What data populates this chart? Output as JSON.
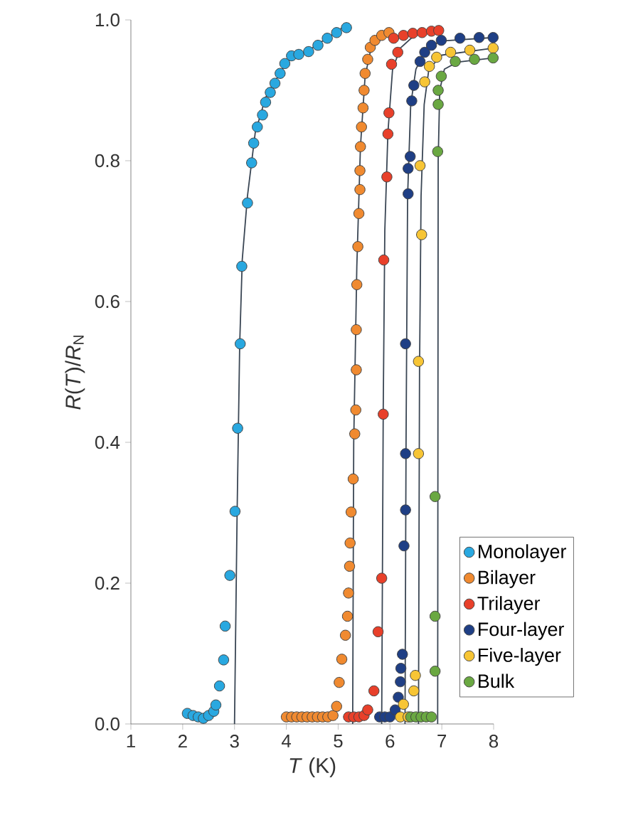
{
  "chart_data": {
    "type": "scatter",
    "xlabel": "*T* (K)",
    "ylabel": "*R*(*T*)/*R*$_{N}$",
    "xlim": [
      1,
      8
    ],
    "ylim": [
      0,
      1.0
    ],
    "xticks": [
      1,
      2,
      3,
      4,
      5,
      6,
      7,
      8
    ],
    "yticks": [
      {
        "value": 0,
        "label": "0.0"
      },
      {
        "value": 0.2,
        "label": "0.2"
      },
      {
        "value": 0.4,
        "label": "0.4"
      },
      {
        "value": 0.6,
        "label": "0.6"
      },
      {
        "value": 0.8,
        "label": "0.8"
      },
      {
        "value": 1.0,
        "label": "1.0"
      }
    ],
    "grid": false,
    "legend": "bottom right",
    "marker": "circle",
    "series": [
      {
        "name": "Monolayer",
        "color": "#29a8e0",
        "x": [
          2.09,
          2.2,
          2.3,
          2.4,
          2.5,
          2.6,
          2.64,
          2.71,
          2.79,
          2.82,
          2.91,
          3.01,
          3.06,
          3.11,
          3.14,
          3.25,
          3.33,
          3.37,
          3.44,
          3.54,
          3.6,
          3.69,
          3.78,
          3.88,
          3.97,
          4.1,
          4.24,
          4.43,
          4.61,
          4.79,
          4.97,
          5.16
        ],
        "values": [
          0.015,
          0.012,
          0.01,
          0.008,
          0.012,
          0.018,
          0.027,
          0.054,
          0.091,
          0.139,
          0.211,
          0.302,
          0.42,
          0.54,
          0.65,
          0.74,
          0.797,
          0.825,
          0.848,
          0.865,
          0.883,
          0.897,
          0.91,
          0.924,
          0.938,
          0.949,
          0.951,
          0.955,
          0.964,
          0.974,
          0.982,
          0.989
        ]
      },
      {
        "name": "Bilayer",
        "color": "#f08a30",
        "x": [
          4.0,
          4.1,
          4.2,
          4.3,
          4.4,
          4.5,
          4.6,
          4.7,
          4.8,
          4.9,
          4.97,
          5.02,
          5.07,
          5.14,
          5.18,
          5.2,
          5.22,
          5.23,
          5.25,
          5.29,
          5.32,
          5.34,
          5.35,
          5.35,
          5.36,
          5.38,
          5.4,
          5.42,
          5.42,
          5.43,
          5.45,
          5.48,
          5.5,
          5.52,
          5.57,
          5.62,
          5.71,
          5.84,
          5.98
        ],
        "values": [
          0.01,
          0.01,
          0.01,
          0.01,
          0.01,
          0.01,
          0.01,
          0.01,
          0.01,
          0.012,
          0.025,
          0.059,
          0.092,
          0.126,
          0.153,
          0.186,
          0.224,
          0.257,
          0.301,
          0.348,
          0.412,
          0.446,
          0.503,
          0.56,
          0.624,
          0.678,
          0.725,
          0.759,
          0.786,
          0.82,
          0.848,
          0.875,
          0.9,
          0.924,
          0.944,
          0.961,
          0.971,
          0.978,
          0.982
        ]
      },
      {
        "name": "Trilayer",
        "color": "#e8402a",
        "x": [
          5.2,
          5.3,
          5.4,
          5.5,
          5.57,
          5.69,
          5.77,
          5.84,
          5.87,
          5.88,
          5.94,
          5.96,
          5.98,
          6.03,
          6.15,
          6.07,
          6.26,
          6.44,
          6.62,
          6.8,
          6.94
        ],
        "values": [
          0.01,
          0.01,
          0.01,
          0.012,
          0.02,
          0.047,
          0.131,
          0.207,
          0.44,
          0.659,
          0.777,
          0.838,
          0.868,
          0.937,
          0.954,
          0.974,
          0.978,
          0.981,
          0.982,
          0.984,
          0.985
        ]
      },
      {
        "name": "Four-layer",
        "color": "#1f3f85",
        "x": [
          5.8,
          5.9,
          6.0,
          6.1,
          6.16,
          6.2,
          6.21,
          6.24,
          6.27,
          6.3,
          6.3,
          6.3,
          6.35,
          6.35,
          6.39,
          6.42,
          6.46,
          6.58,
          6.67,
          6.8,
          6.99,
          7.35,
          7.72,
          7.99
        ],
        "values": [
          0.01,
          0.01,
          0.01,
          0.02,
          0.038,
          0.06,
          0.079,
          0.099,
          0.253,
          0.304,
          0.384,
          0.54,
          0.753,
          0.789,
          0.806,
          0.885,
          0.907,
          0.941,
          0.954,
          0.964,
          0.971,
          0.974,
          0.975,
          0.975
        ]
      },
      {
        "name": "Five-layer",
        "color": "#f7c535",
        "x": [
          6.2,
          6.26,
          6.35,
          6.46,
          6.49,
          6.55,
          6.55,
          6.61,
          6.58,
          6.67,
          6.76,
          6.9,
          7.17,
          7.54,
          7.99
        ],
        "values": [
          0.01,
          0.028,
          0.01,
          0.047,
          0.069,
          0.384,
          0.515,
          0.695,
          0.793,
          0.912,
          0.934,
          0.947,
          0.954,
          0.957,
          0.96
        ]
      },
      {
        "name": "Bulk",
        "color": "#6aa842",
        "x": [
          6.4,
          6.5,
          6.6,
          6.7,
          6.8,
          6.87,
          6.87,
          6.87,
          6.92,
          6.93,
          6.93,
          6.99,
          7.26,
          7.63,
          7.99
        ],
        "values": [
          0.01,
          0.01,
          0.01,
          0.01,
          0.01,
          0.075,
          0.153,
          0.323,
          0.813,
          0.88,
          0.9,
          0.92,
          0.941,
          0.944,
          0.946
        ]
      },
      {
        "type": "line",
        "marker": "none",
        "color": "#3a4654",
        "x": [
          3.0,
          3.05,
          3.1,
          3.15,
          3.25,
          3.4,
          3.6,
          4.0,
          4.5,
          5.1
        ],
        "values": [
          0,
          0.3,
          0.54,
          0.66,
          0.75,
          0.84,
          0.89,
          0.94,
          0.96,
          0.99
        ]
      },
      {
        "type": "line",
        "marker": "none",
        "color": "#3a4654",
        "x": [
          5.28,
          5.3,
          5.36,
          5.43,
          5.52,
          5.65,
          5.85
        ],
        "values": [
          0,
          0.4,
          0.65,
          0.82,
          0.92,
          0.965,
          0.98
        ]
      },
      {
        "type": "line",
        "marker": "none",
        "color": "#3a4654",
        "x": [
          5.84,
          5.87,
          5.9,
          5.96,
          6.05,
          6.2,
          6.5,
          7.0
        ],
        "values": [
          0,
          0.45,
          0.7,
          0.84,
          0.93,
          0.96,
          0.98,
          0.985
        ]
      },
      {
        "type": "line",
        "marker": "none",
        "color": "#3a4654",
        "x": [
          6.29,
          6.31,
          6.34,
          6.4,
          6.5,
          6.7,
          7.0,
          8.0
        ],
        "values": [
          0,
          0.4,
          0.75,
          0.88,
          0.93,
          0.96,
          0.97,
          0.975
        ]
      },
      {
        "type": "line",
        "marker": "none",
        "color": "#3a4654",
        "x": [
          6.55,
          6.57,
          6.6,
          6.66,
          6.75,
          7.0,
          8.0
        ],
        "values": [
          0,
          0.5,
          0.75,
          0.88,
          0.93,
          0.95,
          0.96
        ]
      },
      {
        "type": "line",
        "marker": "none",
        "color": "#3a4654",
        "x": [
          6.92,
          6.93,
          6.96,
          7.05,
          7.3,
          8.0
        ],
        "values": [
          0,
          0.8,
          0.9,
          0.93,
          0.94,
          0.946
        ]
      }
    ]
  }
}
